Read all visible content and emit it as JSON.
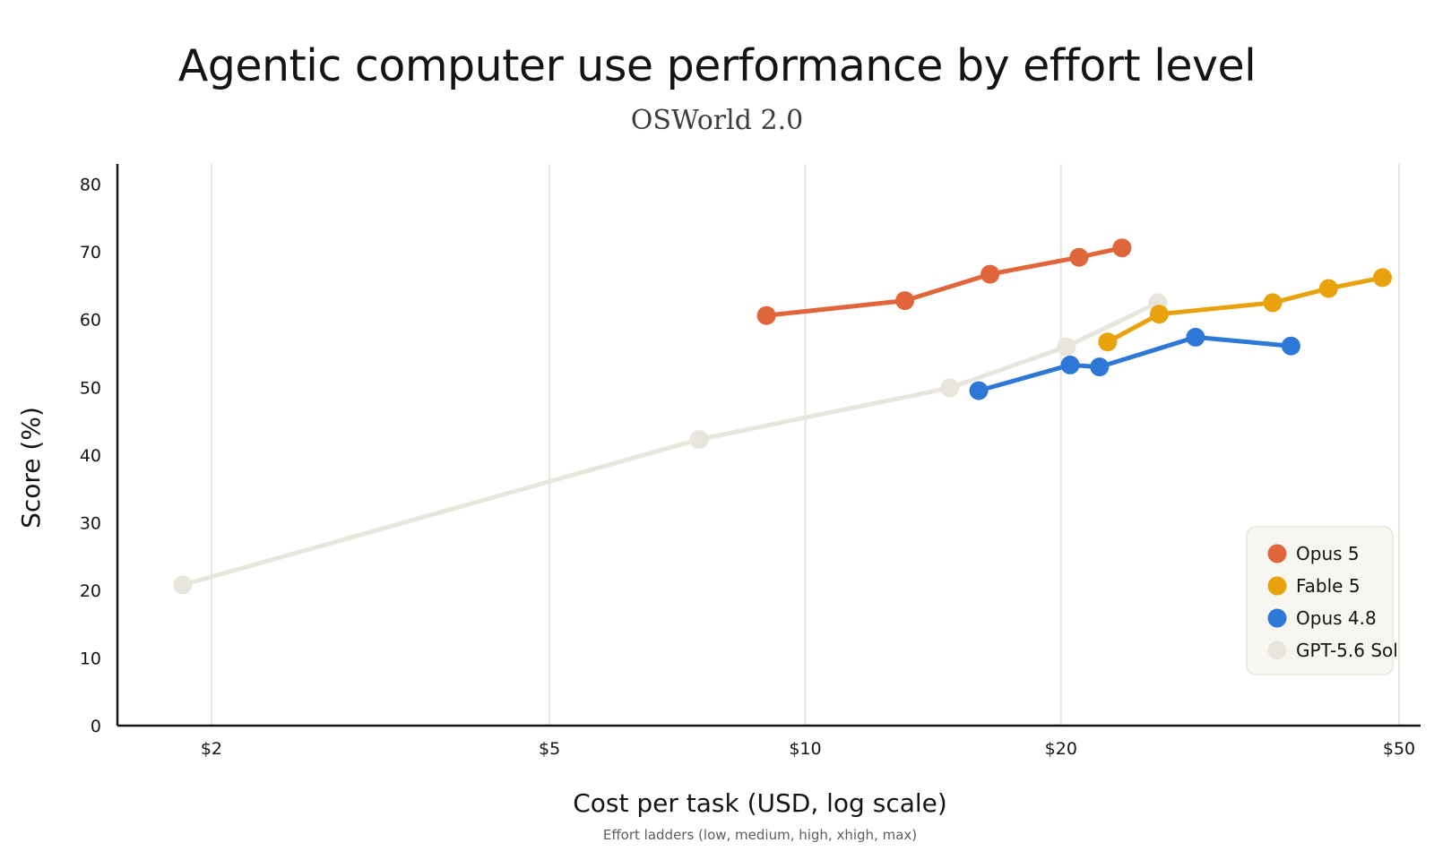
{
  "chart_data": {
    "type": "line",
    "title": "Agentic computer use performance by effort level",
    "subtitle": "OSWorld 2.0",
    "xlabel": "Cost per task (USD, log scale)",
    "ylabel": "Score (%)",
    "note": "Effort ladders (low, medium, high, xhigh, max)",
    "x_scale": "log",
    "xlim": [
      1.55,
      53
    ],
    "ylim": [
      0,
      83
    ],
    "x_ticks": [
      2,
      5,
      10,
      20,
      50
    ],
    "x_tick_labels": [
      "$2",
      "$5",
      "$10",
      "$20",
      "$50"
    ],
    "y_ticks": [
      0,
      10,
      20,
      30,
      40,
      50,
      60,
      70,
      80
    ],
    "y_tick_labels": [
      "0",
      "10",
      "20",
      "30",
      "40",
      "50",
      "60",
      "70",
      "80"
    ],
    "grid": "vertical",
    "legend_position": "bottom-right",
    "series": [
      {
        "name": "GPT-5.6 Sol",
        "color": "#e8e6dc",
        "points": [
          [
            1.85,
            20.8
          ],
          [
            7.5,
            42.3
          ],
          [
            14.8,
            49.9
          ],
          [
            20.3,
            56.0
          ],
          [
            26.0,
            62.5
          ]
        ]
      },
      {
        "name": "Opus 5",
        "color": "#e0653a",
        "points": [
          [
            9.0,
            60.6
          ],
          [
            13.1,
            62.8
          ],
          [
            16.5,
            66.7
          ],
          [
            21.0,
            69.2
          ],
          [
            23.6,
            70.6
          ]
        ]
      },
      {
        "name": "Fable 5",
        "color": "#e8a20c",
        "points": [
          [
            22.7,
            56.7
          ],
          [
            26.1,
            60.8
          ],
          [
            35.5,
            62.5
          ],
          [
            41.3,
            64.6
          ],
          [
            47.8,
            66.2
          ]
        ]
      },
      {
        "name": "Opus 4.8",
        "color": "#2d78d6",
        "points": [
          [
            16.0,
            49.5
          ],
          [
            20.5,
            53.3
          ],
          [
            22.2,
            53.0
          ],
          [
            28.8,
            57.4
          ],
          [
            37.3,
            56.1
          ]
        ]
      }
    ],
    "legend_order": [
      "Opus 5",
      "Fable 5",
      "Opus 4.8",
      "GPT-5.6 Sol"
    ]
  }
}
